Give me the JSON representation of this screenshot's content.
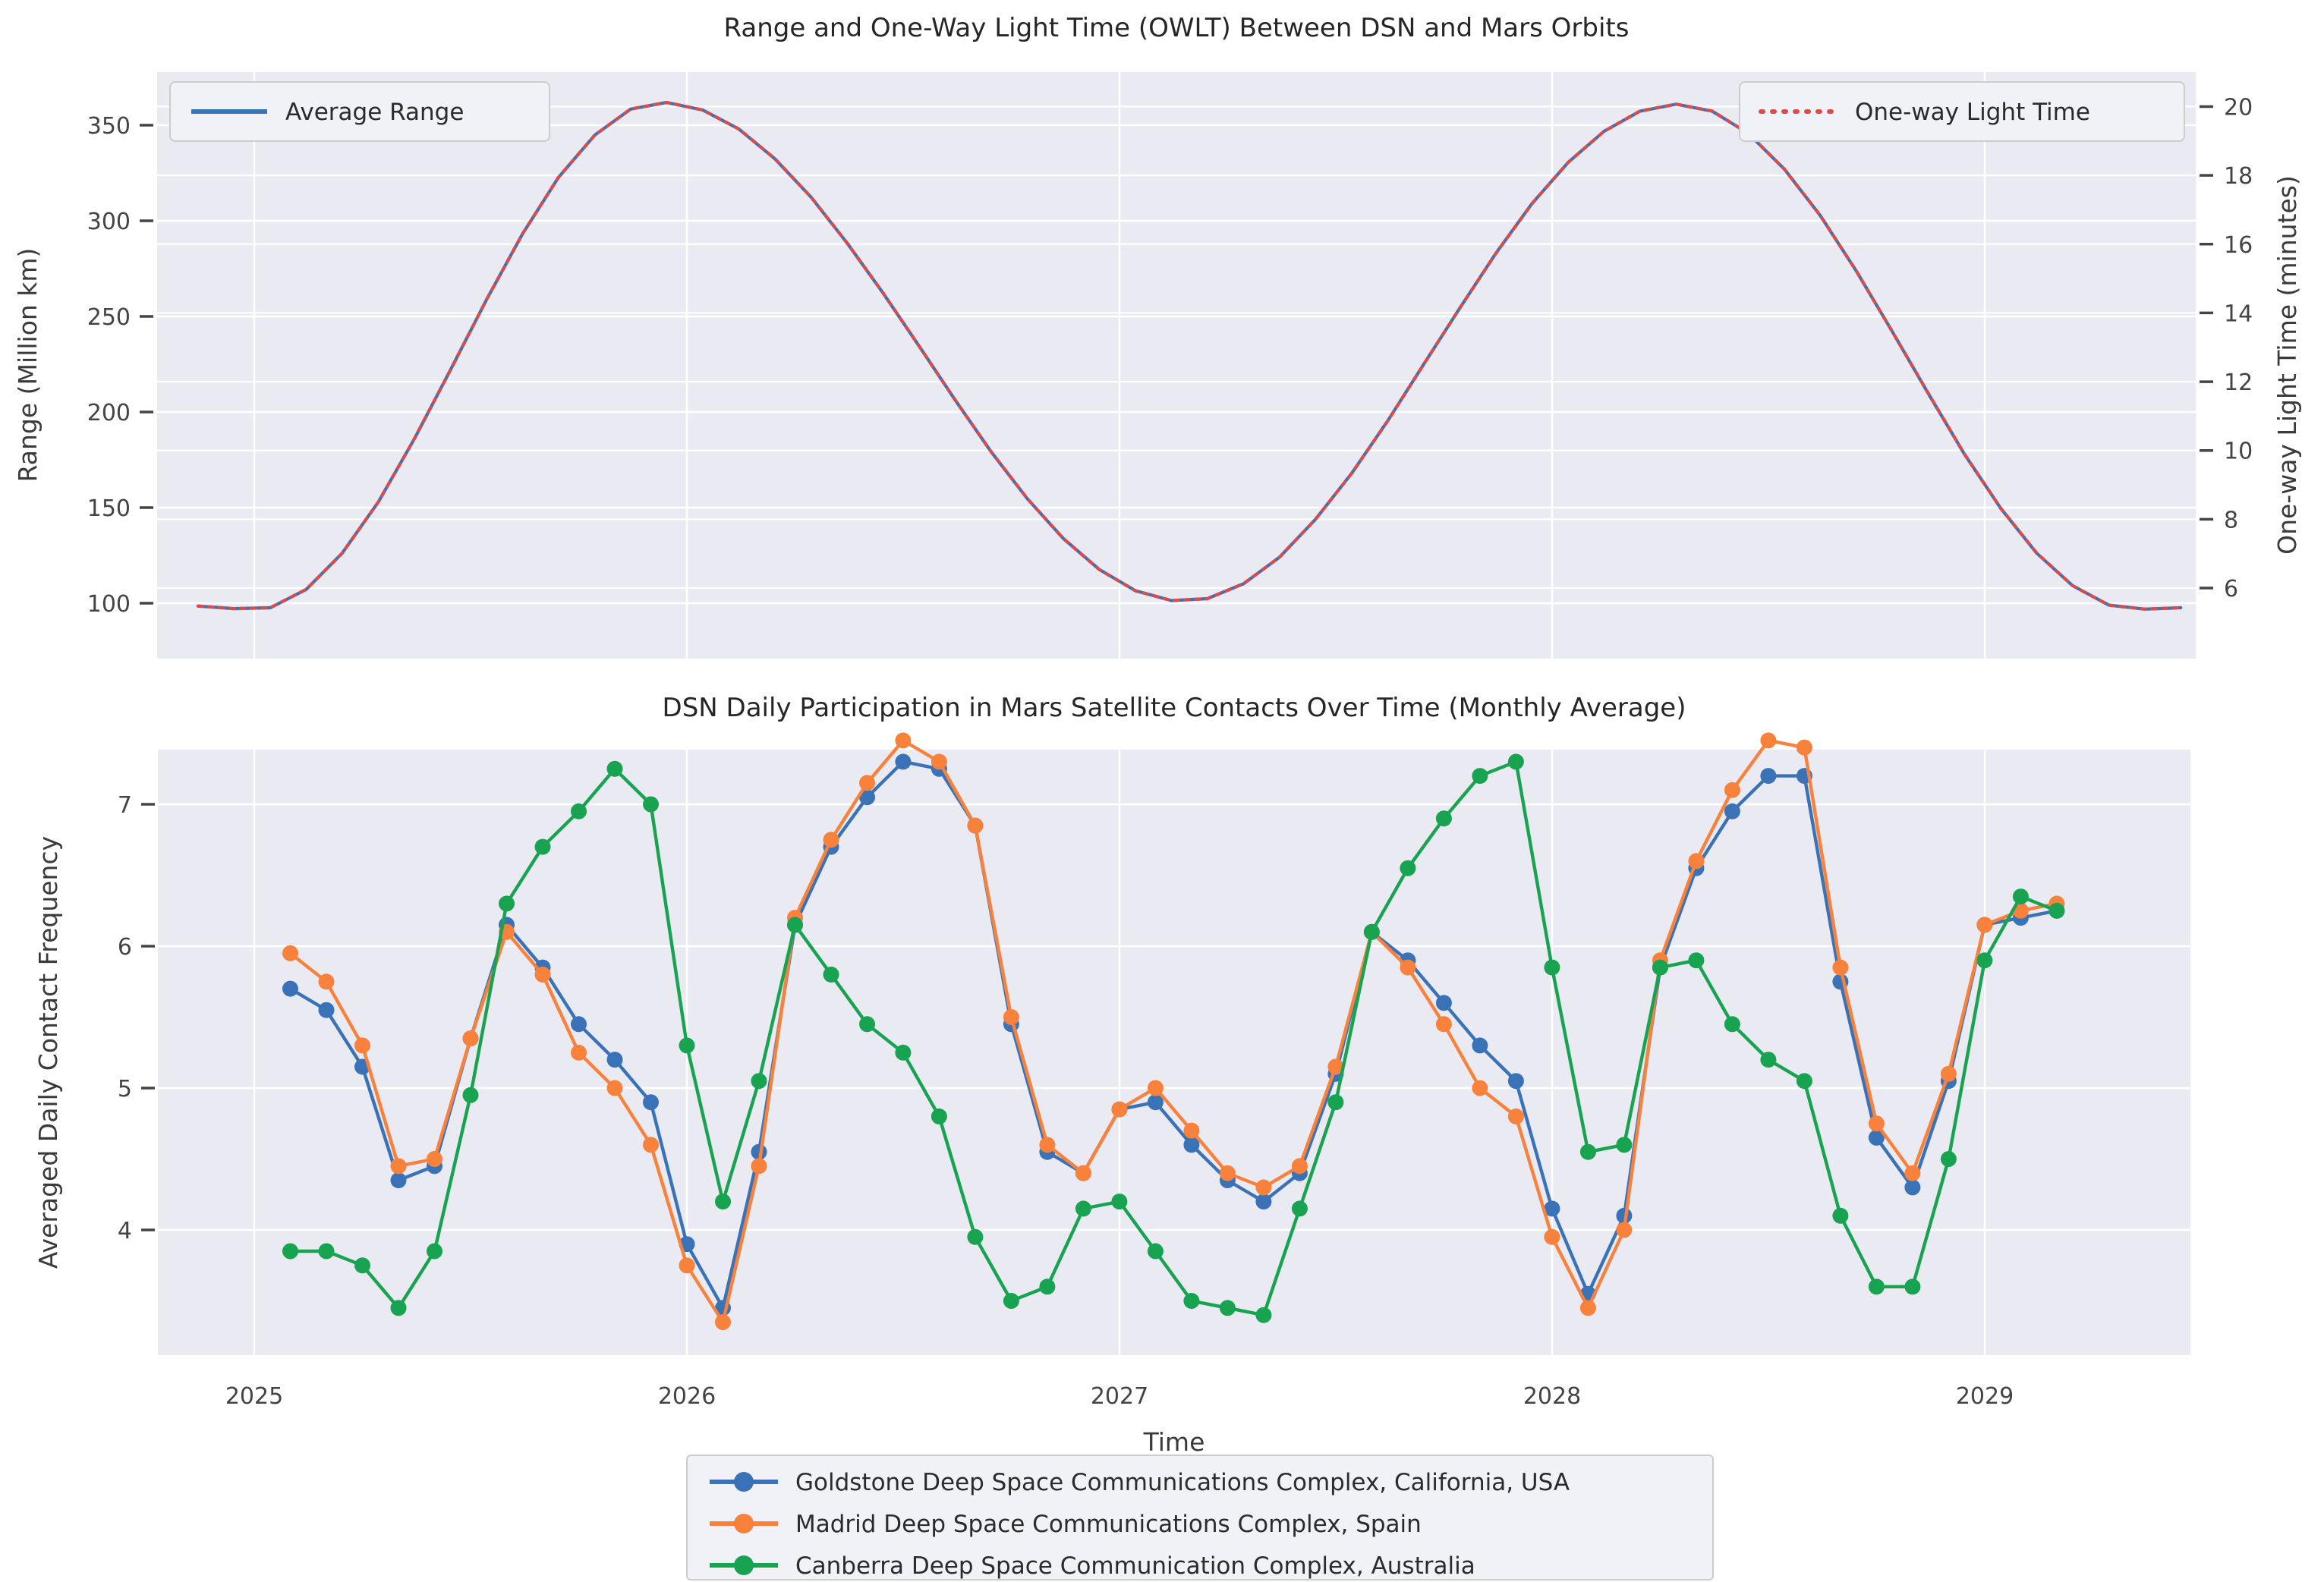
{
  "figure": {
    "background": "#ffffff",
    "plot_background": "#e9eaf2",
    "grid_color": "#ffffff",
    "tick_color": "#444444",
    "accent_blue": "#3a72b8",
    "accent_orange": "#f8813c",
    "accent_green": "#17a350",
    "accent_red": "#d94c4c"
  },
  "chart_data": [
    {
      "id": "range-owlt",
      "type": "line",
      "title": "Range and One-Way Light Time (OWLT) Between DSN and Mars Orbits",
      "ylabel_left": "Range (Million km)",
      "ylabel_right": "One-way Light Time (minutes)",
      "xlim": [
        2024.775,
        2029.49
      ],
      "ylim_left": [
        71,
        378
      ],
      "alignment_note": "right axis aligned to left: minutes = Million_km / 17.987",
      "x_ticks": [
        2025,
        2026,
        2027,
        2028,
        2029
      ],
      "x_tick_labels_visible": false,
      "y_ticks_left": [
        100,
        150,
        200,
        250,
        300,
        350
      ],
      "y_ticks_right": [
        6,
        8,
        10,
        12,
        14,
        16,
        18,
        20
      ],
      "grid": true,
      "legend": [
        {
          "label": "Average Range",
          "style": "solid",
          "position": "upper left"
        },
        {
          "label": "One-way Light Time",
          "style": "dotted",
          "position": "upper right"
        }
      ],
      "x": [
        2024.87,
        2024.953,
        2025.037,
        2025.12,
        2025.203,
        2025.287,
        2025.37,
        2025.453,
        2025.537,
        2025.62,
        2025.703,
        2025.787,
        2025.87,
        2025.953,
        2026.037,
        2026.12,
        2026.203,
        2026.287,
        2026.37,
        2026.453,
        2026.537,
        2026.62,
        2026.703,
        2026.787,
        2026.87,
        2026.953,
        2027.037,
        2027.12,
        2027.203,
        2027.287,
        2027.37,
        2027.453,
        2027.537,
        2027.62,
        2027.703,
        2027.787,
        2027.87,
        2027.953,
        2028.037,
        2028.12,
        2028.203,
        2028.287,
        2028.37,
        2028.453,
        2028.537,
        2028.62,
        2028.703,
        2028.787,
        2028.87,
        2028.953,
        2029.037,
        2029.12,
        2029.203,
        2029.287,
        2029.37,
        2029.453
      ],
      "series": [
        {
          "name": "Average Range",
          "axis": "left",
          "units": "Million km",
          "style": "solid",
          "color": "#3a72b8",
          "values": [
            98.5,
            97.2,
            97.6,
            107.2,
            126.1,
            153.0,
            185.9,
            221.8,
            258.8,
            293.1,
            322.6,
            344.8,
            358.4,
            361.9,
            357.9,
            348.0,
            332.5,
            312.4,
            288.5,
            262.4,
            234.4,
            206.3,
            179.3,
            154.6,
            133.9,
            117.7,
            106.5,
            101.4,
            102.4,
            110.2,
            124.1,
            143.9,
            168.0,
            195.4,
            224.9,
            254.5,
            283.0,
            308.9,
            330.5,
            346.8,
            357.3,
            361.0,
            357.3,
            345.8,
            327.0,
            302.7,
            273.8,
            241.8,
            209.5,
            178.0,
            149.6,
            126.2,
            109.2,
            99.0,
            96.9,
            97.6
          ]
        },
        {
          "name": "One-way Light Time",
          "axis": "right",
          "units": "minutes",
          "style": "dotted",
          "color": "#d94c4c",
          "values": [
            5.48,
            5.4,
            5.43,
            5.96,
            7.01,
            8.51,
            10.34,
            12.33,
            14.39,
            16.3,
            17.94,
            19.17,
            19.93,
            20.12,
            19.9,
            19.35,
            18.49,
            17.37,
            16.04,
            14.59,
            13.03,
            11.47,
            9.97,
            8.6,
            7.44,
            6.54,
            5.92,
            5.64,
            5.69,
            6.13,
            6.9,
            8.0,
            9.34,
            10.86,
            12.5,
            14.15,
            15.73,
            17.17,
            18.38,
            19.28,
            19.87,
            20.07,
            19.87,
            19.23,
            18.18,
            16.83,
            15.22,
            13.44,
            11.65,
            9.9,
            8.32,
            7.02,
            6.07,
            5.5,
            5.39,
            5.43
          ]
        }
      ]
    },
    {
      "id": "dsn-participation",
      "type": "line",
      "title": "DSN Daily Participation in Mars Satellite Contacts Over Time (Monthly Average)",
      "xlabel": "Time",
      "ylabel": "Averaged Daily Contact Frequency",
      "xlim": [
        2024.775,
        2029.49
      ],
      "ylim": [
        3.12,
        7.38
      ],
      "x_ticks": [
        2025,
        2026,
        2027,
        2028,
        2029
      ],
      "y_ticks": [
        4,
        5,
        6,
        7
      ],
      "grid": true,
      "marker": "circle",
      "x_start_decimal_year": 2025.0833,
      "x_step_years": 0.08333,
      "n_points": 50,
      "series": [
        {
          "name": "Goldstone Deep Space Communications Complex, California, USA",
          "color": "#3a72b8",
          "values": [
            5.7,
            5.55,
            5.15,
            4.35,
            4.45,
            5.35,
            6.15,
            5.85,
            5.45,
            5.2,
            4.9,
            3.9,
            3.45,
            4.55,
            6.15,
            6.7,
            7.05,
            7.3,
            7.25,
            6.85,
            5.45,
            4.55,
            4.4,
            4.85,
            4.9,
            4.6,
            4.35,
            4.2,
            4.4,
            5.1,
            6.1,
            5.9,
            5.6,
            5.3,
            5.05,
            4.15,
            3.55,
            4.1,
            5.85,
            6.55,
            6.95,
            7.2,
            7.2,
            5.75,
            4.65,
            4.3,
            5.05,
            6.15,
            6.2,
            6.25
          ]
        },
        {
          "name": "Madrid Deep Space Communications Complex, Spain",
          "color": "#f8813c",
          "values": [
            5.95,
            5.75,
            5.3,
            4.45,
            4.5,
            5.35,
            6.1,
            5.8,
            5.25,
            5.0,
            4.6,
            3.75,
            3.35,
            4.45,
            6.2,
            6.75,
            7.15,
            7.45,
            7.3,
            6.85,
            5.5,
            4.6,
            4.4,
            4.85,
            5.0,
            4.7,
            4.4,
            4.3,
            4.45,
            5.15,
            6.1,
            5.85,
            5.45,
            5.0,
            4.8,
            3.95,
            3.45,
            4.0,
            5.9,
            6.6,
            7.1,
            7.45,
            7.4,
            5.85,
            4.75,
            4.4,
            5.1,
            6.15,
            6.25,
            6.3
          ]
        },
        {
          "name": "Canberra Deep Space Communication Complex, Australia",
          "color": "#17a350",
          "values": [
            3.85,
            3.85,
            3.75,
            3.45,
            3.85,
            4.95,
            6.3,
            6.7,
            6.95,
            7.25,
            7.0,
            5.3,
            4.2,
            5.05,
            6.15,
            5.8,
            5.45,
            5.25,
            4.8,
            3.95,
            3.5,
            3.6,
            4.15,
            4.2,
            3.85,
            3.5,
            3.45,
            3.4,
            4.15,
            4.9,
            6.1,
            6.55,
            6.9,
            7.2,
            7.3,
            5.85,
            4.55,
            4.6,
            5.85,
            5.9,
            5.45,
            5.2,
            5.05,
            4.1,
            3.6,
            3.6,
            4.5,
            5.9,
            6.35,
            6.25
          ]
        }
      ]
    }
  ]
}
